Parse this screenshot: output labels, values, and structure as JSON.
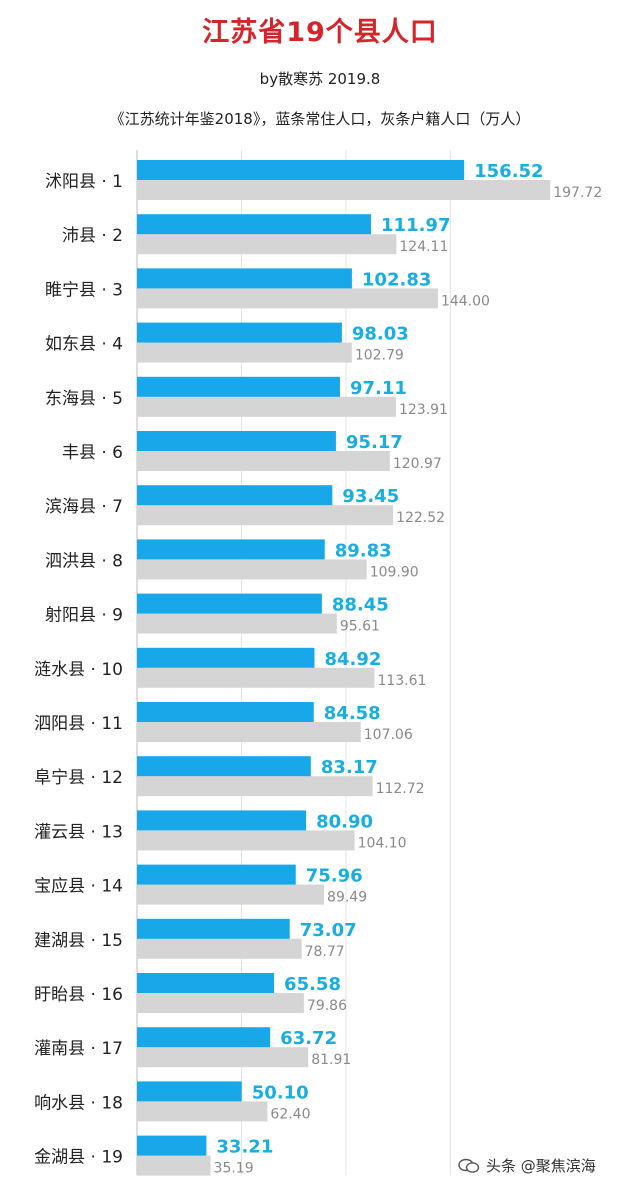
{
  "chart_data": {
    "type": "bar",
    "title": "江苏省19个县人口",
    "byline": "by散寒苏 2019.8",
    "subtitle": "《江苏统计年鉴2018》，蓝条常住人口，灰条户籍人口（万人）",
    "categories": [
      "沭阳县 · 1",
      "沛县 · 2",
      "睢宁县 · 3",
      "如东县 · 4",
      "东海县 · 5",
      "丰县 · 6",
      "滨海县 · 7",
      "泗洪县 · 8",
      "射阳县 · 9",
      "涟水县 · 10",
      "泗阳县 · 11",
      "阜宁县 · 12",
      "灌云县 · 13",
      "宝应县 · 14",
      "建湖县 · 15",
      "盱眙县 · 16",
      "灌南县 · 17",
      "响水县 · 18",
      "金湖县 · 19"
    ],
    "series": [
      {
        "values": [
          156.52,
          111.97,
          102.83,
          98.03,
          97.11,
          95.17,
          93.45,
          89.83,
          88.45,
          84.92,
          84.58,
          83.17,
          80.9,
          75.96,
          73.07,
          65.58,
          63.72,
          50.1,
          33.21
        ],
        "labels": [
          "156.52",
          "111.97",
          "102.83",
          "98.03",
          "97.11",
          "95.17",
          "93.45",
          "89.83",
          "88.45",
          "84.92",
          "84.58",
          "83.17",
          "80.90",
          "75.96",
          "73.07",
          "65.58",
          "63.72",
          "50.10",
          "33.21"
        ],
        "color": "#18a8ea",
        "label_color": "#19aee0"
      },
      {
        "values": [
          197.72,
          124.11,
          144.0,
          102.79,
          123.91,
          120.97,
          122.52,
          109.9,
          95.61,
          113.61,
          107.06,
          112.72,
          104.1,
          89.49,
          78.77,
          79.86,
          81.91,
          62.4,
          35.19
        ],
        "labels": [
          "197.72",
          "124.11",
          "144.00",
          "102.79",
          "123.91",
          "120.97",
          "122.52",
          "109.90",
          "95.61",
          "113.61",
          "107.06",
          "112.72",
          "104.10",
          "89.49",
          "78.77",
          "79.86",
          "81.91",
          "62.40",
          "35.19"
        ],
        "color": "#d5d5d5",
        "label_color": "#8a8a8a"
      }
    ],
    "xlim": [
      0,
      200
    ],
    "grid": true,
    "legend": "none"
  },
  "watermark": "头条 @聚焦滨海"
}
